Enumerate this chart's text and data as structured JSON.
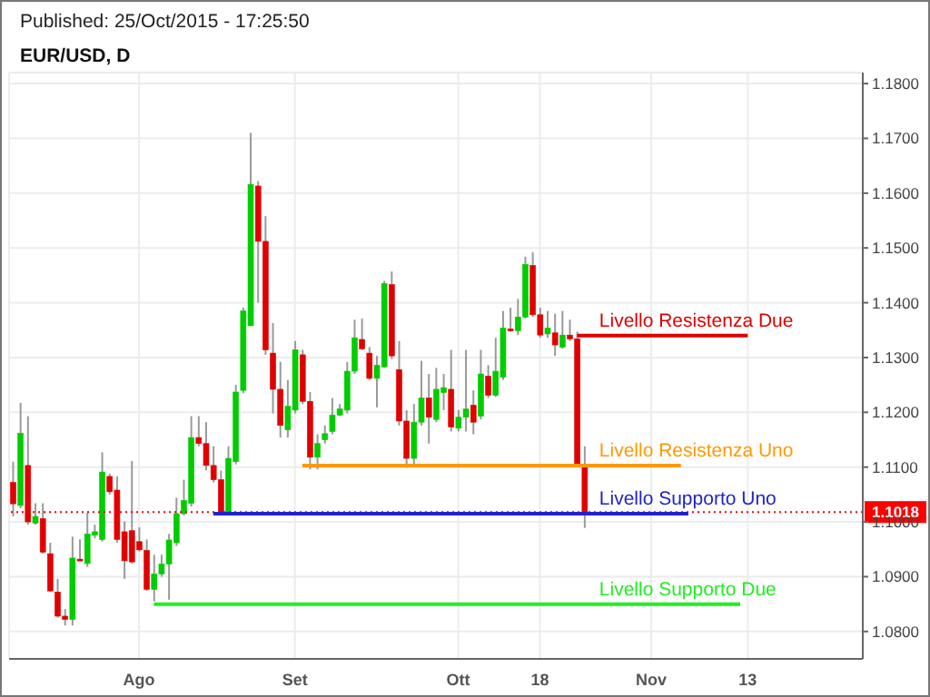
{
  "chart_data": {
    "type": "candlestick",
    "title": "EUR/USD, D",
    "annotations": [
      "Published: 25/Oct/2015 - 17:25:50"
    ],
    "categories": [
      null,
      null,
      null,
      null,
      null,
      null,
      null,
      null,
      null,
      null,
      null,
      null,
      null,
      null,
      null,
      null,
      null,
      "Ago",
      null,
      null,
      null,
      null,
      null,
      null,
      null,
      null,
      null,
      null,
      null,
      null,
      null,
      null,
      null,
      null,
      null,
      null,
      null,
      null,
      "Set",
      null,
      null,
      null,
      null,
      null,
      null,
      null,
      null,
      null,
      null,
      null,
      null,
      null,
      null,
      null,
      null,
      null,
      null,
      null,
      null,
      null,
      "Ott",
      null,
      null,
      null,
      null,
      null,
      null,
      null,
      null,
      null,
      null,
      "18",
      null,
      null,
      null,
      null,
      null,
      null,
      null,
      null,
      null,
      null,
      null,
      null,
      null,
      null,
      "Nov",
      null,
      null,
      null,
      null,
      null,
      null,
      null,
      null,
      null,
      null,
      null,
      null,
      "13",
      null,
      null,
      null,
      null,
      null,
      null,
      null,
      null,
      null,
      null,
      null,
      null,
      null,
      null,
      null
    ],
    "ohlc": [
      [
        1.1072,
        1.111,
        1.101,
        1.1033
      ],
      [
        1.103,
        1.1217,
        1.1025,
        1.1162
      ],
      [
        1.1103,
        1.1193,
        1.0995,
        1.1
      ],
      [
        1.0998,
        1.1034,
        1.0995,
        1.101
      ],
      [
        1.1006,
        1.1034,
        1.0942,
        1.0945
      ],
      [
        1.0942,
        1.0962,
        1.0872,
        1.0874
      ],
      [
        1.0872,
        1.0896,
        1.0825,
        1.0828
      ],
      [
        1.0828,
        1.0841,
        1.0811,
        1.0822
      ],
      [
        1.0822,
        1.0973,
        1.0811,
        1.0934
      ],
      [
        1.0932,
        1.0968,
        1.0929,
        1.0929
      ],
      [
        1.0924,
        1.1017,
        1.0918,
        1.0978
      ],
      [
        1.0976,
        1.0995,
        1.097,
        1.0982
      ],
      [
        1.0968,
        1.1127,
        1.0964,
        1.1091
      ],
      [
        1.1083,
        1.1088,
        1.105,
        1.1055
      ],
      [
        1.1058,
        1.1083,
        1.0962,
        1.0968
      ],
      [
        1.0982,
        1.1001,
        1.0896,
        1.0929
      ],
      [
        1.0984,
        1.1111,
        1.0924,
        1.0927
      ],
      [
        1.0964,
        1.099,
        1.0946,
        1.0949
      ],
      [
        1.0948,
        1.0968,
        1.0874,
        1.0877
      ],
      [
        1.0877,
        1.094,
        1.0855,
        1.0905
      ],
      [
        1.0905,
        1.094,
        1.09,
        1.0923
      ],
      [
        1.0923,
        1.0978,
        1.0858,
        1.0967
      ],
      [
        1.0962,
        1.1044,
        1.0956,
        1.1015
      ],
      [
        1.1015,
        1.1077,
        1.1012,
        1.1039
      ],
      [
        1.1034,
        1.1193,
        1.1028,
        1.1154
      ],
      [
        1.1154,
        1.1193,
        1.1138,
        1.1143
      ],
      [
        1.1143,
        1.1182,
        1.1094,
        1.1103
      ],
      [
        1.1103,
        1.1138,
        1.1072,
        1.1077
      ],
      [
        1.1077,
        1.1094,
        1.1012,
        1.1015
      ],
      [
        1.1015,
        1.1138,
        1.1012,
        1.1116
      ],
      [
        1.111,
        1.125,
        1.1105,
        1.1237
      ],
      [
        1.124,
        1.1391,
        1.1235,
        1.1385
      ],
      [
        1.1358,
        1.171,
        1.1358,
        1.1616
      ],
      [
        1.1613,
        1.1622,
        1.14,
        1.1512
      ],
      [
        1.1512,
        1.1558,
        1.1305,
        1.1314
      ],
      [
        1.1308,
        1.1363,
        1.1198,
        1.1242
      ],
      [
        1.1242,
        1.1292,
        1.1154,
        1.1176
      ],
      [
        1.1168,
        1.1259,
        1.1154,
        1.1211
      ],
      [
        1.1204,
        1.133,
        1.1198,
        1.1314
      ],
      [
        1.1305,
        1.1314,
        1.1215,
        1.122
      ],
      [
        1.122,
        1.1237,
        1.1096,
        1.1118
      ],
      [
        1.1118,
        1.116,
        1.1096,
        1.1143
      ],
      [
        1.115,
        1.1176,
        1.1143,
        1.1161
      ],
      [
        1.1165,
        1.1226,
        1.116,
        1.1195
      ],
      [
        1.1195,
        1.1215,
        1.1193,
        1.1206
      ],
      [
        1.1204,
        1.1292,
        1.1198,
        1.1275
      ],
      [
        1.1275,
        1.1369,
        1.127,
        1.1336
      ],
      [
        1.1333,
        1.1371,
        1.1314,
        1.1316
      ],
      [
        1.1308,
        1.1319,
        1.1259,
        1.1262
      ],
      [
        1.1262,
        1.1303,
        1.1209,
        1.1286
      ],
      [
        1.1283,
        1.144,
        1.1281,
        1.1435
      ],
      [
        1.1433,
        1.1457,
        1.1297,
        1.1303
      ],
      [
        1.1278,
        1.133,
        1.1176,
        1.1184
      ],
      [
        1.1184,
        1.1204,
        1.1099,
        1.1116
      ],
      [
        1.1116,
        1.1215,
        1.1105,
        1.1182
      ],
      [
        1.1182,
        1.1294,
        1.1176,
        1.1226
      ],
      [
        1.1226,
        1.127,
        1.1143,
        1.1191
      ],
      [
        1.1187,
        1.1281,
        1.1182,
        1.1242
      ],
      [
        1.1236,
        1.127,
        1.1204,
        1.1245
      ],
      [
        1.1242,
        1.1314,
        1.1165,
        1.1173
      ],
      [
        1.1171,
        1.1204,
        1.1165,
        1.1191
      ],
      [
        1.1191,
        1.1314,
        1.1165,
        1.1206
      ],
      [
        1.1213,
        1.124,
        1.116,
        1.1182
      ],
      [
        1.1193,
        1.1314,
        1.1187,
        1.127
      ],
      [
        1.1266,
        1.1286,
        1.1226,
        1.1231
      ],
      [
        1.1231,
        1.1336,
        1.1228,
        1.1275
      ],
      [
        1.1264,
        1.1385,
        1.1259,
        1.1354
      ],
      [
        1.1352,
        1.1391,
        1.1347,
        1.1349
      ],
      [
        1.1349,
        1.1407,
        1.1341,
        1.1374
      ],
      [
        1.1374,
        1.1484,
        1.1371,
        1.147
      ],
      [
        1.1468,
        1.1492,
        1.1374,
        1.1378
      ],
      [
        1.1378,
        1.1391,
        1.1336,
        1.1341
      ],
      [
        1.1343,
        1.1385,
        1.1336,
        1.1354
      ],
      [
        1.1345,
        1.138,
        1.1303,
        1.1323
      ],
      [
        1.1319,
        1.1385,
        1.1316,
        1.1341
      ],
      [
        1.1341,
        1.1369,
        1.133,
        1.1334
      ],
      [
        1.1334,
        1.1347,
        1.11,
        1.1103
      ],
      [
        1.1103,
        1.1138,
        1.0989,
        1.1018
      ],
      null,
      null,
      null,
      null,
      null,
      null,
      null,
      null,
      null,
      null,
      null,
      null,
      null,
      null,
      null,
      null,
      null,
      null,
      null,
      null,
      null,
      null,
      null,
      null,
      null,
      null,
      null,
      null,
      null,
      null,
      null,
      null,
      null,
      null,
      null,
      null,
      null
    ],
    "colors": [
      "#e00000",
      "#00cc00",
      "#e00000",
      "#00cc00",
      "#e00000",
      "#e00000",
      "#e00000",
      "#e00000",
      "#00cc00",
      "#e00000",
      "#00cc00",
      "#00cc00",
      "#00cc00",
      "#e00000",
      "#e00000",
      "#e00000",
      "#e00000",
      "#e00000",
      "#e00000",
      "#00cc00",
      "#00cc00",
      "#00cc00",
      "#00cc00",
      "#00cc00",
      "#00cc00",
      "#e00000",
      "#e00000",
      "#e00000",
      "#e00000",
      "#00cc00",
      "#00cc00",
      "#00cc00",
      "#00cc00",
      "#e00000",
      "#e00000",
      "#e00000",
      "#e00000",
      "#00cc00",
      "#00cc00",
      "#e00000",
      "#e00000",
      "#00cc00",
      "#00cc00",
      "#00cc00",
      "#00cc00",
      "#00cc00",
      "#00cc00",
      "#e00000",
      "#e00000",
      "#00cc00",
      "#00cc00",
      "#e00000",
      "#e00000",
      "#e00000",
      "#00cc00",
      "#00cc00",
      "#e00000",
      "#00cc00",
      "#00cc00",
      "#e00000",
      "#00cc00",
      "#00cc00",
      "#e00000",
      "#00cc00",
      "#e00000",
      "#00cc00",
      "#00cc00",
      "#e00000",
      "#00cc00",
      "#00cc00",
      "#e00000",
      "#e00000",
      "#00cc00",
      "#e00000",
      "#00cc00",
      "#e00000",
      "#e00000",
      "#e00000",
      null,
      null,
      null,
      null,
      null,
      null,
      null,
      null,
      null,
      null,
      null,
      null,
      null,
      null,
      null,
      null,
      null,
      null,
      null,
      null,
      null,
      null,
      null,
      null,
      null,
      null,
      null,
      null,
      null,
      null,
      null,
      null,
      null,
      null,
      null,
      null,
      null
    ],
    "series": [
      {
        "type": "line",
        "name": "Livello Resistenza Due",
        "color": "#dd0000",
        "values": [
          null,
          null,
          null,
          null,
          null,
          null,
          null,
          null,
          null,
          null,
          null,
          null,
          null,
          null,
          null,
          null,
          null,
          null,
          null,
          null,
          null,
          null,
          null,
          null,
          null,
          null,
          null,
          null,
          null,
          null,
          null,
          null,
          null,
          null,
          null,
          null,
          null,
          null,
          null,
          null,
          null,
          null,
          null,
          null,
          null,
          null,
          null,
          null,
          null,
          null,
          null,
          null,
          null,
          null,
          null,
          null,
          null,
          null,
          null,
          null,
          null,
          null,
          null,
          null,
          null,
          null,
          null,
          null,
          null,
          null,
          null,
          null,
          null,
          null,
          null,
          null,
          1.134,
          1.134,
          1.134,
          1.134,
          1.134,
          1.134,
          1.134,
          1.134,
          1.134,
          1.134,
          1.134,
          1.134,
          1.134,
          1.134,
          1.134,
          1.134,
          1.134,
          1.134,
          1.134,
          1.134,
          1.134,
          1.134,
          1.134,
          1.134,
          null,
          null,
          null,
          null,
          null,
          null,
          null,
          null,
          null,
          null,
          null,
          null,
          null,
          null,
          null
        ]
      },
      {
        "type": "line",
        "name": "Livello Resistenza Uno",
        "color": "#ff9900",
        "values": [
          null,
          null,
          null,
          null,
          null,
          null,
          null,
          null,
          null,
          null,
          null,
          null,
          null,
          null,
          null,
          null,
          null,
          null,
          null,
          null,
          null,
          null,
          null,
          null,
          null,
          null,
          null,
          null,
          null,
          null,
          null,
          null,
          null,
          null,
          null,
          null,
          null,
          null,
          null,
          1.1103,
          1.1103,
          1.1103,
          1.1103,
          1.1103,
          1.1103,
          1.1103,
          1.1103,
          1.1103,
          1.1103,
          1.1103,
          1.1103,
          1.1103,
          1.1103,
          1.1103,
          1.1103,
          1.1103,
          1.1103,
          1.1103,
          1.1103,
          1.1103,
          1.1103,
          1.1103,
          1.1103,
          1.1103,
          1.1103,
          1.1103,
          1.1103,
          1.1103,
          1.1103,
          1.1103,
          1.1103,
          1.1103,
          1.1103,
          1.1103,
          1.1103,
          1.1103,
          1.1103,
          1.1103,
          1.1103,
          1.1103,
          1.1103,
          1.1103,
          1.1103,
          1.1103,
          1.1103,
          1.1103,
          1.1103,
          1.1103,
          1.1103,
          1.1103,
          1.1103,
          null,
          null,
          null,
          null,
          null,
          null,
          null,
          null,
          null,
          null,
          null,
          null,
          null,
          null,
          null,
          null,
          null,
          null,
          null,
          null,
          null,
          null,
          null,
          null
        ]
      },
      {
        "type": "line",
        "name": "Livello Supporto Uno",
        "color": "#2222cc",
        "values": [
          null,
          null,
          null,
          null,
          null,
          null,
          null,
          null,
          null,
          null,
          null,
          null,
          null,
          null,
          null,
          null,
          null,
          null,
          null,
          null,
          null,
          null,
          null,
          null,
          null,
          null,
          null,
          1.1015,
          1.1015,
          1.1015,
          1.1015,
          1.1015,
          1.1015,
          1.1015,
          1.1015,
          1.1015,
          1.1015,
          1.1015,
          1.1015,
          1.1015,
          1.1015,
          1.1015,
          1.1015,
          1.1015,
          1.1015,
          1.1015,
          1.1015,
          1.1015,
          1.1015,
          1.1015,
          1.1015,
          1.1015,
          1.1015,
          1.1015,
          1.1015,
          1.1015,
          1.1015,
          1.1015,
          1.1015,
          1.1015,
          1.1015,
          1.1015,
          1.1015,
          1.1015,
          1.1015,
          1.1015,
          1.1015,
          1.1015,
          1.1015,
          1.1015,
          1.1015,
          1.1015,
          1.1015,
          1.1015,
          1.1015,
          1.1015,
          1.1015,
          1.1015,
          1.1015,
          1.1015,
          1.1015,
          1.1015,
          1.1015,
          1.1015,
          1.1015,
          1.1015,
          1.1015,
          1.1015,
          1.1015,
          1.1015,
          1.1015,
          1.1015,
          null,
          null,
          null,
          null,
          null,
          null,
          null,
          null,
          null,
          null,
          null,
          null,
          null,
          null,
          null,
          null,
          null,
          null,
          null,
          null,
          null,
          null,
          null
        ]
      },
      {
        "type": "line",
        "name": "Livello Supporto Due",
        "color": "#22ee22",
        "values": [
          null,
          null,
          null,
          null,
          null,
          null,
          null,
          null,
          null,
          null,
          null,
          null,
          null,
          null,
          null,
          null,
          null,
          null,
          null,
          1.085,
          1.085,
          1.085,
          1.085,
          1.085,
          1.085,
          1.085,
          1.085,
          1.085,
          1.085,
          1.085,
          1.085,
          1.085,
          1.085,
          1.085,
          1.085,
          1.085,
          1.085,
          1.085,
          1.085,
          1.085,
          1.085,
          1.085,
          1.085,
          1.085,
          1.085,
          1.085,
          1.085,
          1.085,
          1.085,
          1.085,
          1.085,
          1.085,
          1.085,
          1.085,
          1.085,
          1.085,
          1.085,
          1.085,
          1.085,
          1.085,
          1.085,
          1.085,
          1.085,
          1.085,
          1.085,
          1.085,
          1.085,
          1.085,
          1.085,
          1.085,
          1.085,
          1.085,
          1.085,
          1.085,
          1.085,
          1.085,
          1.085,
          1.085,
          1.085,
          1.085,
          1.085,
          1.085,
          1.085,
          1.085,
          1.085,
          1.085,
          1.085,
          1.085,
          1.085,
          1.085,
          1.085,
          1.085,
          1.085,
          1.085,
          1.085,
          1.085,
          1.085,
          1.085,
          1.085,
          null,
          null,
          null,
          null,
          null,
          null,
          null,
          null,
          null,
          null,
          null,
          null,
          null,
          null,
          null,
          null
        ]
      }
    ],
    "ref_lines": [
      {
        "axis": "y",
        "value": 1.1018,
        "label": "1.1018",
        "color": "#ff0000",
        "line_style": "dotted"
      }
    ],
    "ylim": [
      1.075,
      1.182
    ],
    "yticks": [
      {
        "value": 1.08,
        "label": "1.0800"
      },
      {
        "value": 1.09,
        "label": "1.0900"
      },
      {
        "value": 1.1,
        "label": "1.1000"
      },
      {
        "value": 1.11,
        "label": "1.1100"
      },
      {
        "value": 1.12,
        "label": "1.1200"
      },
      {
        "value": 1.13,
        "label": "1.1300"
      },
      {
        "value": 1.14,
        "label": "1.1400"
      },
      {
        "value": 1.15,
        "label": "1.1500"
      },
      {
        "value": 1.16,
        "label": "1.1600"
      },
      {
        "value": 1.17,
        "label": "1.1700"
      },
      {
        "value": 1.18,
        "label": "1.1800"
      }
    ],
    "grid": true
  }
}
